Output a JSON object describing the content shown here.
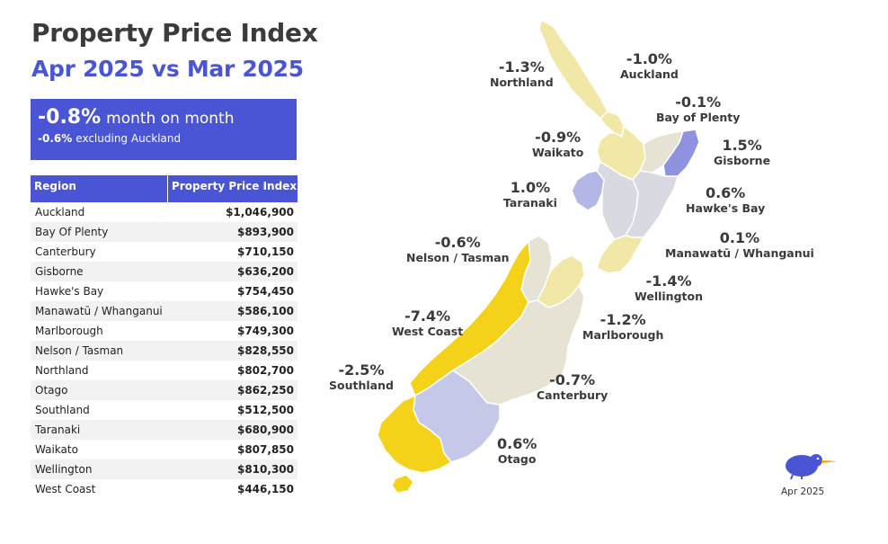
{
  "header": {
    "title": "Property Price Index",
    "subtitle": "Apr 2025 vs Mar 2025"
  },
  "summary": {
    "main_value": "-0.8%",
    "main_text": "month on month",
    "sub_value": "-0.6%",
    "sub_text": "excluding Auckland"
  },
  "table": {
    "col_region": "Region",
    "col_index": "Property Price Index",
    "rows": [
      {
        "region": "Auckland",
        "value": "$1,046,900"
      },
      {
        "region": "Bay Of Plenty",
        "value": "$893,900"
      },
      {
        "region": "Canterbury",
        "value": "$710,150"
      },
      {
        "region": "Gisborne",
        "value": "$636,200"
      },
      {
        "region": "Hawke's Bay",
        "value": "$754,450"
      },
      {
        "region": "Manawatū / Whanganui",
        "value": "$586,100"
      },
      {
        "region": "Marlborough",
        "value": "$749,300"
      },
      {
        "region": "Nelson / Tasman",
        "value": "$828,550"
      },
      {
        "region": "Northland",
        "value": "$802,700"
      },
      {
        "region": "Otago",
        "value": "$862,250"
      },
      {
        "region": "Southland",
        "value": "$512,500"
      },
      {
        "region": "Taranaki",
        "value": "$680,900"
      },
      {
        "region": "Waikato",
        "value": "$807,850"
      },
      {
        "region": "Wellington",
        "value": "$810,300"
      },
      {
        "region": "West Coast",
        "value": "$446,150"
      }
    ]
  },
  "map_labels": {
    "northland": {
      "pct": "-1.3%",
      "name": "Northland"
    },
    "auckland": {
      "pct": "-1.0%",
      "name": "Auckland"
    },
    "bay_of_plenty": {
      "pct": "-0.1%",
      "name": "Bay of Plenty"
    },
    "waikato": {
      "pct": "-0.9%",
      "name": "Waikato"
    },
    "gisborne": {
      "pct": "1.5%",
      "name": "Gisborne"
    },
    "taranaki": {
      "pct": "1.0%",
      "name": "Taranaki"
    },
    "hawkes_bay": {
      "pct": "0.6%",
      "name": "Hawke's Bay"
    },
    "manawatu": {
      "pct": "0.1%",
      "name": "Manawatū / Whanganui"
    },
    "nelson": {
      "pct": "-0.6%",
      "name": "Nelson / Tasman"
    },
    "wellington": {
      "pct": "-1.4%",
      "name": "Wellington"
    },
    "west_coast": {
      "pct": "-7.4%",
      "name": "West Coast"
    },
    "marlborough": {
      "pct": "-1.2%",
      "name": "Marlborough"
    },
    "southland": {
      "pct": "-2.5%",
      "name": "Southland"
    },
    "canterbury": {
      "pct": "-0.7%",
      "name": "Canterbury"
    },
    "otago": {
      "pct": "0.6%",
      "name": "Otago"
    }
  },
  "colors": {
    "accent": "#4a55d6",
    "strong_decline": "#f5d21a",
    "decline": "#f1e7a6",
    "neutral": "#e6e3d4",
    "slight": "#d9d9e1",
    "growth": "#b4b6e6",
    "strong_growth": "#8f93df"
  },
  "footer": {
    "date": "Apr 2025",
    "logo_icon": "kiwi-bird-icon"
  }
}
